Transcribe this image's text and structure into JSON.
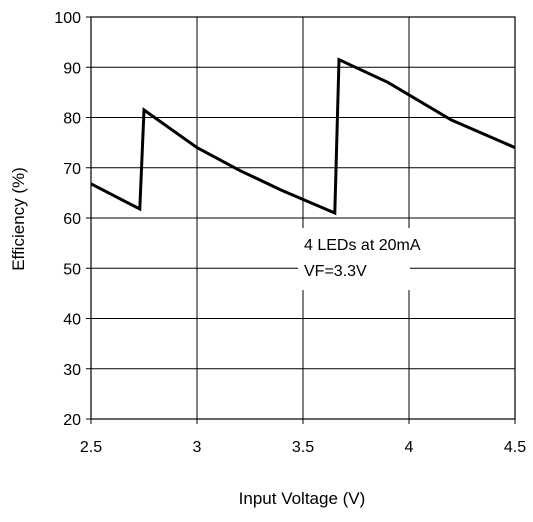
{
  "chart_data": {
    "type": "line",
    "title": "",
    "xlabel": "Input Voltage (V)",
    "ylabel": "Efficiency (%)",
    "xlim": [
      2.5,
      4.5
    ],
    "ylim": [
      20,
      100
    ],
    "xticks": [
      2.5,
      3,
      3.5,
      4,
      4.5
    ],
    "xtick_labels": [
      "2.5",
      "3",
      "3.5",
      "4",
      "4.5"
    ],
    "yticks": [
      20,
      30,
      40,
      50,
      60,
      70,
      80,
      90,
      100
    ],
    "ytick_labels": [
      "20",
      "30",
      "40",
      "50",
      "60",
      "70",
      "80",
      "90",
      "100"
    ],
    "grid": true,
    "legend": "none",
    "annotation": [
      "4 LEDs at 20mA",
      "VF=3.3V"
    ],
    "series": [
      {
        "x": [
          2.5,
          2.73,
          2.75,
          3.0,
          3.2,
          3.4,
          3.65,
          3.67,
          3.9,
          4.2,
          4.5
        ],
        "y": [
          66.8,
          61.8,
          81.5,
          74.0,
          69.5,
          65.5,
          61.0,
          91.5,
          87.0,
          79.5,
          74.0
        ]
      }
    ],
    "colors": {
      "line": "#000000",
      "grid": "#000000",
      "background": "#ffffff"
    }
  }
}
